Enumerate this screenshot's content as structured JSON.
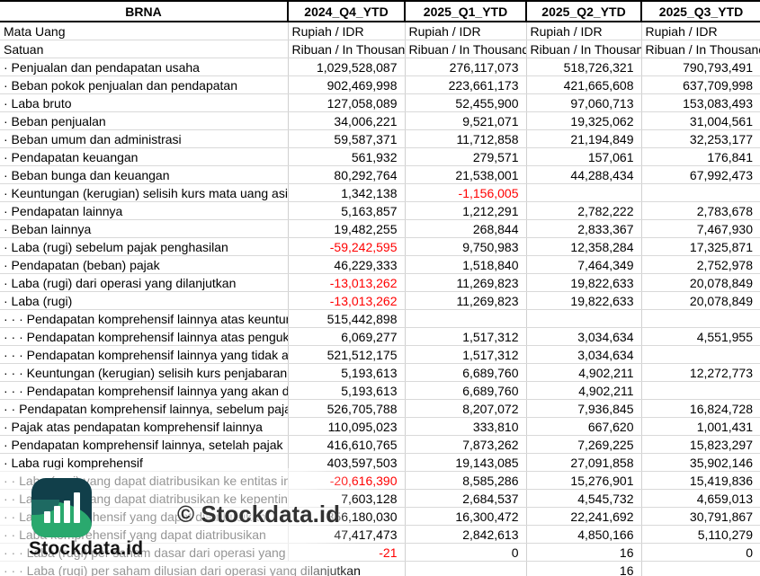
{
  "brand": {
    "watermark": "© Stockdata.id",
    "logo_text": "Stockdata.id",
    "logo_colors": {
      "dark": "#113f4a",
      "green": "#2aa96e",
      "overlap": "#1e6a62",
      "bars": "#ffffff"
    }
  },
  "colors": {
    "negative": "#ff0000",
    "text": "#000000",
    "gridline": "#d0d0d0",
    "header_border": "#000000"
  },
  "table": {
    "title": "BRNA",
    "columns": [
      "2024_Q4_YTD",
      "2025_Q1_YTD",
      "2025_Q2_YTD",
      "2025_Q3_YTD"
    ],
    "meta_rows": [
      {
        "label": "Mata Uang",
        "values": [
          "Rupiah / IDR",
          "Rupiah / IDR",
          "Rupiah / IDR",
          "Rupiah / IDR"
        ]
      },
      {
        "label": "Satuan",
        "values": [
          "Ribuan / In Thousand",
          "Ribuan / In Thousand",
          "Ribuan / In Thousand",
          "Ribuan / In Thousand"
        ]
      }
    ],
    "rows": [
      {
        "label": "· Penjualan dan pendapatan usaha",
        "values": [
          "1,029,528,087",
          "276,117,073",
          "518,726,321",
          "790,793,491"
        ]
      },
      {
        "label": "· Beban pokok penjualan dan pendapatan",
        "values": [
          "902,469,998",
          "223,661,173",
          "421,665,608",
          "637,709,998"
        ]
      },
      {
        "label": "· Laba bruto",
        "values": [
          "127,058,089",
          "52,455,900",
          "97,060,713",
          "153,083,493"
        ]
      },
      {
        "label": "· Beban penjualan",
        "values": [
          "34,006,221",
          "9,521,071",
          "19,325,062",
          "31,004,561"
        ]
      },
      {
        "label": "· Beban umum dan administrasi",
        "values": [
          "59,587,371",
          "11,712,858",
          "21,194,849",
          "32,253,177"
        ]
      },
      {
        "label": "· Pendapatan keuangan",
        "values": [
          "561,932",
          "279,571",
          "157,061",
          "176,841"
        ]
      },
      {
        "label": "· Beban bunga dan keuangan",
        "values": [
          "80,292,764",
          "21,538,001",
          "44,288,434",
          "67,992,473"
        ]
      },
      {
        "label": "· Keuntungan (kerugian) selisih kurs mata uang asing",
        "values": [
          "1,342,138",
          "-1,156,005",
          "",
          ""
        ]
      },
      {
        "label": "· Pendapatan lainnya",
        "values": [
          "5,163,857",
          "1,212,291",
          "2,782,222",
          "2,783,678"
        ]
      },
      {
        "label": "· Beban lainnya",
        "values": [
          "19,482,255",
          "268,844",
          "2,833,367",
          "7,467,930"
        ]
      },
      {
        "label": "· Laba (rugi) sebelum pajak penghasilan",
        "values": [
          "-59,242,595",
          "9,750,983",
          "12,358,284",
          "17,325,871"
        ]
      },
      {
        "label": "· Pendapatan (beban) pajak",
        "values": [
          "46,229,333",
          "1,518,840",
          "7,464,349",
          "2,752,978"
        ]
      },
      {
        "label": "· Laba (rugi) dari operasi yang dilanjutkan",
        "values": [
          "-13,013,262",
          "11,269,823",
          "19,822,633",
          "20,078,849"
        ]
      },
      {
        "label": "· Laba (rugi)",
        "values": [
          "-13,013,262",
          "11,269,823",
          "19,822,633",
          "20,078,849"
        ]
      },
      {
        "label": "· · · Pendapatan komprehensif lainnya atas keuntung",
        "values": [
          "515,442,898",
          "",
          "",
          ""
        ]
      },
      {
        "label": "· · · Pendapatan komprehensif lainnya atas pengukur",
        "values": [
          "6,069,277",
          "1,517,312",
          "3,034,634",
          "4,551,955"
        ]
      },
      {
        "label": "· · · Pendapatan komprehensif lainnya yang tidak aka",
        "values": [
          "521,512,175",
          "1,517,312",
          "3,034,634",
          ""
        ]
      },
      {
        "label": "· · · Keuntungan (kerugian) selisih kurs penjabaran, s",
        "values": [
          "5,193,613",
          "6,689,760",
          "4,902,211",
          "12,272,773"
        ]
      },
      {
        "label": "· · · Pendapatan komprehensif lainnya yang akan dire",
        "values": [
          "5,193,613",
          "6,689,760",
          "4,902,211",
          ""
        ]
      },
      {
        "label": "· · Pendapatan komprehensif lainnya, sebelum pajak",
        "values": [
          "526,705,788",
          "8,207,072",
          "7,936,845",
          "16,824,728"
        ]
      },
      {
        "label": "· Pajak atas pendapatan komprehensif lainnya",
        "values": [
          "110,095,023",
          "333,810",
          "667,620",
          "1,001,431"
        ]
      },
      {
        "label": "· Pendapatan komprehensif lainnya, setelah pajak",
        "values": [
          "416,610,765",
          "7,873,262",
          "7,269,225",
          "15,823,297"
        ]
      },
      {
        "label": "· Laba rugi komprehensif",
        "values": [
          "403,597,503",
          "19,143,085",
          "27,091,858",
          "35,902,146"
        ]
      },
      {
        "label": "· · Laba (rugi) yang dapat diatribusikan ke entitas induk",
        "values": [
          "-20,616,390",
          "8,585,286",
          "15,276,901",
          "15,419,836"
        ]
      },
      {
        "label": "· · Laba (rugi) yang dapat diatribusikan ke kepentingan",
        "values": [
          "7,603,128",
          "2,684,537",
          "4,545,732",
          "4,659,013"
        ]
      },
      {
        "label": "· · Laba komprehensif yang dapat diatribusikan",
        "values": [
          "356,180,030",
          "16,300,472",
          "22,241,692",
          "30,791,867"
        ]
      },
      {
        "label": "· · Laba komprehensif yang dapat diatribusikan",
        "values": [
          "47,417,473",
          "2,842,613",
          "4,850,166",
          "5,110,279"
        ]
      },
      {
        "label": "· · · Laba (rugi) per saham dasar dari operasi yang dilanjutkan",
        "values": [
          "-21",
          "0",
          "16",
          "0"
        ]
      },
      {
        "label": "· · · Laba (rugi) per saham dilusian dari operasi yang dilanjutkan",
        "values": [
          "",
          "",
          "16",
          ""
        ]
      }
    ]
  }
}
